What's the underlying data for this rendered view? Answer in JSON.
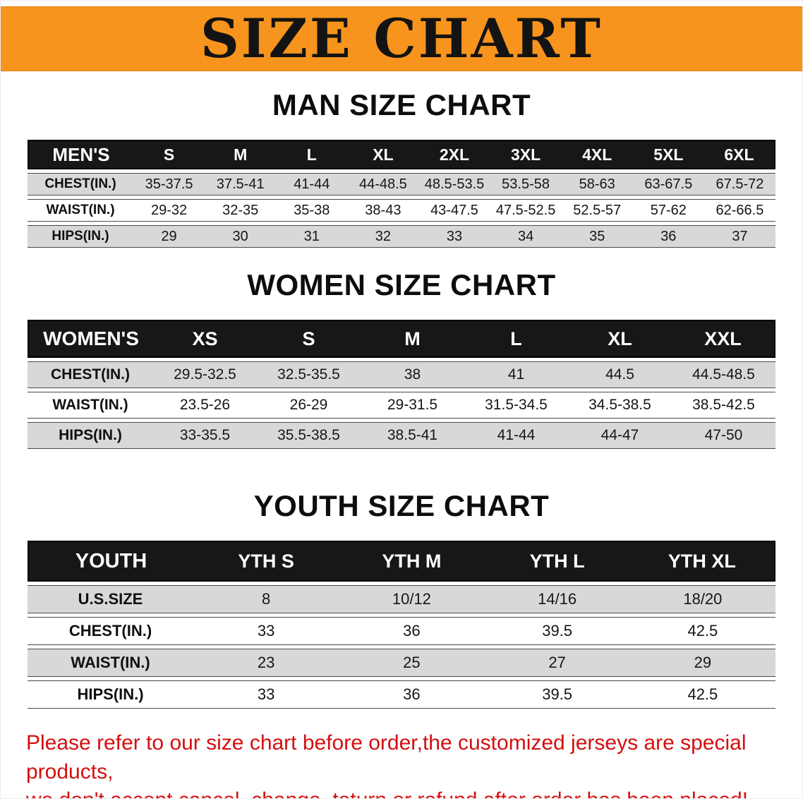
{
  "banner": {
    "title": "SIZE CHART",
    "bg_color": "#f7941e"
  },
  "colors": {
    "banner_orange": "#f7941e",
    "table_header_bg": "#171717",
    "row_stripe_gray": "#d8d8d8",
    "disclaimer_red": "#d40f0f"
  },
  "sections": {
    "men": {
      "heading": "MAN SIZE CHART",
      "table": {
        "header": [
          "MEN'S",
          "S",
          "M",
          "L",
          "XL",
          "2XL",
          "3XL",
          "4XL",
          "5XL",
          "6XL"
        ],
        "rows": [
          {
            "label": "CHEST(IN.)",
            "values": [
              "35-37.5",
              "37.5-41",
              "41-44",
              "44-48.5",
              "48.5-53.5",
              "53.5-58",
              "58-63",
              "63-67.5",
              "67.5-72"
            ]
          },
          {
            "label": "WAIST(IN.)",
            "values": [
              "29-32",
              "32-35",
              "35-38",
              "38-43",
              "43-47.5",
              "47.5-52.5",
              "52.5-57",
              "57-62",
              "62-66.5"
            ]
          },
          {
            "label": "HIPS(IN.)",
            "values": [
              "29",
              "30",
              "31",
              "32",
              "33",
              "34",
              "35",
              "36",
              "37"
            ]
          }
        ]
      }
    },
    "women": {
      "heading": "WOMEN SIZE CHART",
      "table": {
        "header": [
          "WOMEN'S",
          "XS",
          "S",
          "M",
          "L",
          "XL",
          "XXL"
        ],
        "rows": [
          {
            "label": "CHEST(IN.)",
            "values": [
              "29.5-32.5",
              "32.5-35.5",
              "38",
              "41",
              "44.5",
              "44.5-48.5"
            ]
          },
          {
            "label": "WAIST(IN.)",
            "values": [
              "23.5-26",
              "26-29",
              "29-31.5",
              "31.5-34.5",
              "34.5-38.5",
              "38.5-42.5"
            ]
          },
          {
            "label": "HIPS(IN.)",
            "values": [
              "33-35.5",
              "35.5-38.5",
              "38.5-41",
              "41-44",
              "44-47",
              "47-50"
            ]
          }
        ]
      }
    },
    "youth": {
      "heading": "YOUTH SIZE CHART",
      "table": {
        "header": [
          "YOUTH",
          "YTH S",
          "YTH M",
          "YTH L",
          "YTH XL"
        ],
        "rows": [
          {
            "label": "U.S.SIZE",
            "values": [
              "8",
              "10/12",
              "14/16",
              "18/20"
            ]
          },
          {
            "label": "CHEST(IN.)",
            "values": [
              "33",
              "36",
              "39.5",
              "42.5"
            ]
          },
          {
            "label": "WAIST(IN.)",
            "values": [
              "23",
              "25",
              "27",
              "29"
            ]
          },
          {
            "label": "HIPS(IN.)",
            "values": [
              "33",
              "36",
              "39.5",
              "42.5"
            ]
          }
        ]
      }
    }
  },
  "disclaimer": {
    "line1": "Please refer to our size chart before order,the customized jerseys are special products,",
    "line2": "we don't accept cancel, change, teturn or refund after order has been placed!"
  }
}
